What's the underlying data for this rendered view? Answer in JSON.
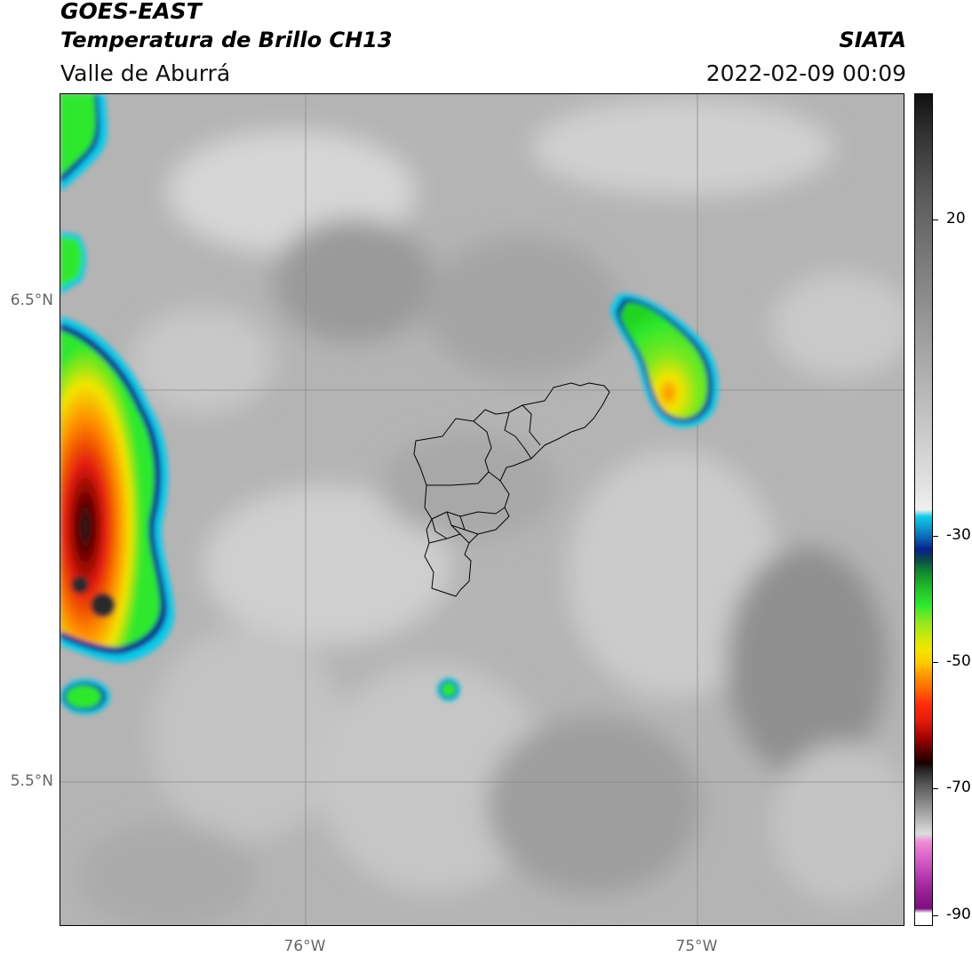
{
  "header": {
    "satellite": "GOES-EAST",
    "product": "Temperatura de Brillo CH13",
    "region": "Valle de Aburrá",
    "brand": "SIATA",
    "timestamp": "2022-02-09 00:09"
  },
  "map": {
    "lat_labels": [
      "6.5°N",
      "5.5°N"
    ],
    "lon_labels": [
      "76°W",
      "75°W"
    ],
    "gridlines": true,
    "cloud_colors": {
      "green": "#2ee82e",
      "yellow": "#f4e400",
      "orange": "#ff8c00",
      "red": "#e21b0a",
      "dark": "#1c1c1c",
      "blue": "#0a1f8c",
      "cyan": "#11c9e8",
      "background": "#b4b4b4"
    }
  },
  "colorbar": {
    "ticks": [
      "20",
      "-30",
      "-50",
      "-70",
      "-90"
    ],
    "ticks_values": [
      20,
      -30,
      -50,
      -70,
      -90
    ],
    "range": [
      -92,
      36
    ]
  }
}
